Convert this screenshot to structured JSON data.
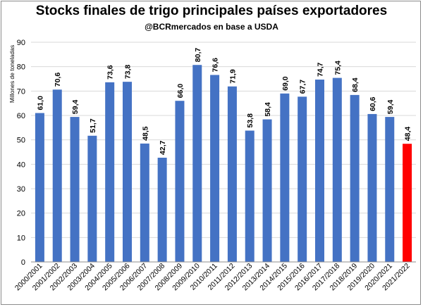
{
  "chart_data": {
    "type": "bar",
    "title": "Stocks finales de trigo principales países exportadores",
    "subtitle": "@BCRmercados en base a USDA",
    "ylabel": "Millones de toneladas",
    "xlabel": "",
    "ylim": [
      0,
      90
    ],
    "yticks": [
      0,
      10,
      20,
      30,
      40,
      50,
      60,
      70,
      80,
      90
    ],
    "grid": true,
    "categories": [
      "2000/2001",
      "2001/2002",
      "2002/2003",
      "2003/2004",
      "2004/2005",
      "2005/2006",
      "2006/2007",
      "2007/2008",
      "2008/2009",
      "2009/2010",
      "2010/2011",
      "2011/2012",
      "2012/2013",
      "2013/2014",
      "2014/2015",
      "2015/2016",
      "2016/2017",
      "2017/2018",
      "2018/2019",
      "2019/2020",
      "2020/2021",
      "2021/2022"
    ],
    "values": [
      61.0,
      70.6,
      59.4,
      51.7,
      73.6,
      73.8,
      48.5,
      42.7,
      66.0,
      80.7,
      76.6,
      71.9,
      53.8,
      58.4,
      69.0,
      67.7,
      74.7,
      75.4,
      68.4,
      60.6,
      59.4,
      48.4
    ],
    "value_labels": [
      "61,0",
      "70,6",
      "59,4",
      "51,7",
      "73,6",
      "73,8",
      "48,5",
      "42,7",
      "66,0",
      "80,7",
      "76,6",
      "71,9",
      "53,8",
      "58,4",
      "69,0",
      "67,7",
      "74,7",
      "75,4",
      "68,4",
      "60,6",
      "59,4",
      "48,4"
    ],
    "colors": {
      "bar": "#4472C4",
      "highlight": "#FF0000",
      "grid": "#d9d9d9"
    },
    "highlight_index": 21
  }
}
